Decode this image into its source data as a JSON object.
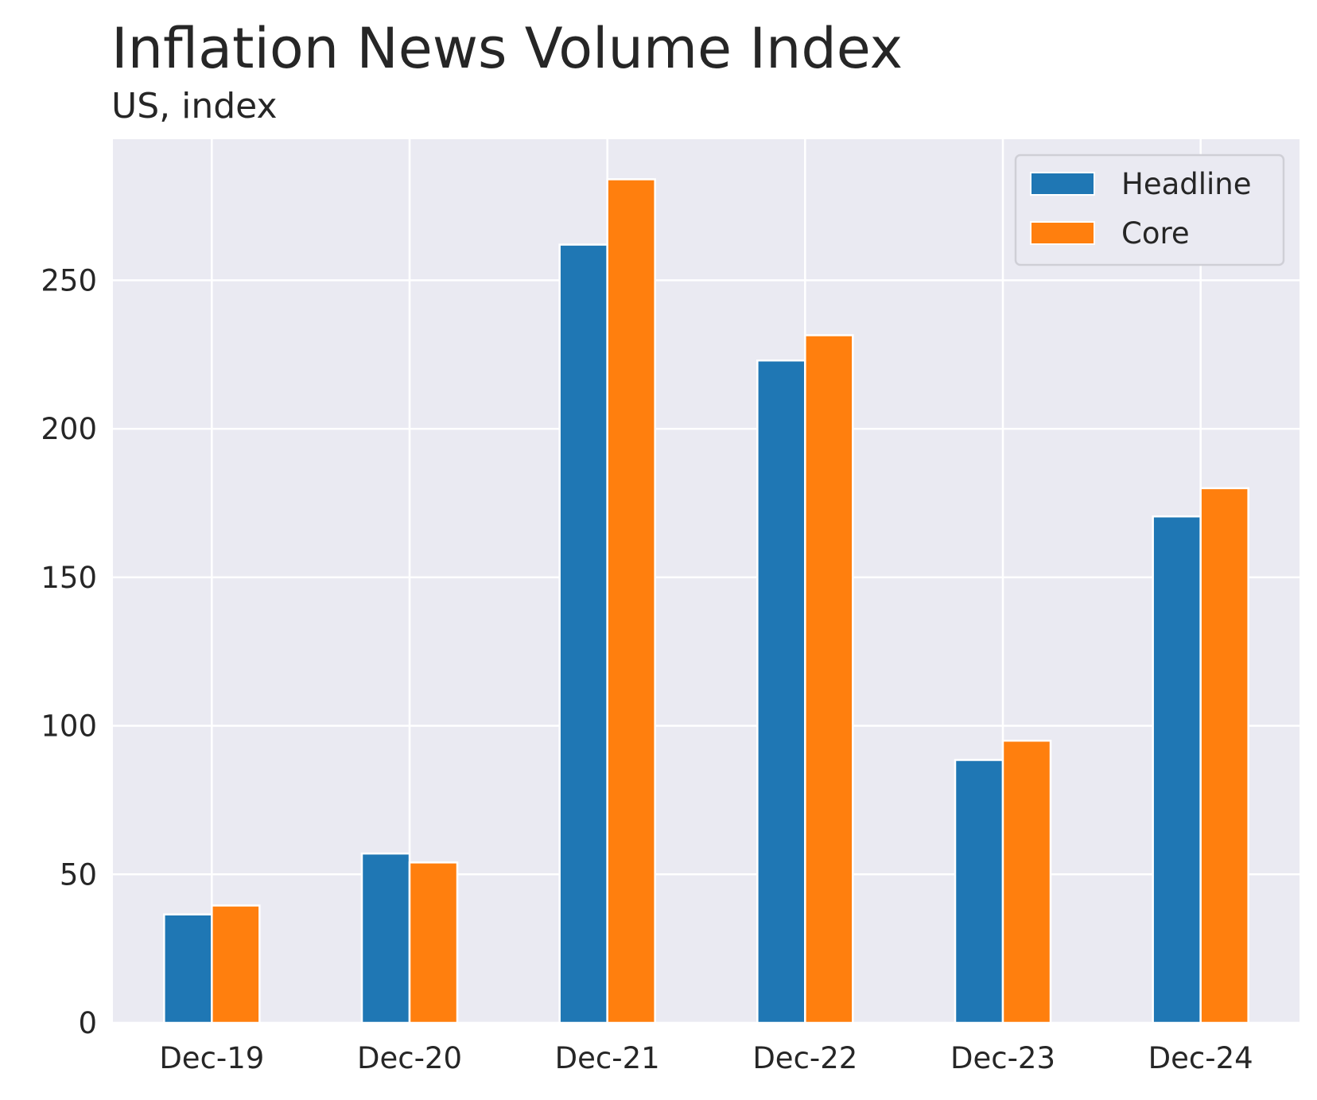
{
  "chart_data": {
    "type": "bar",
    "title": "Inflation News Volume Index",
    "subtitle": "US, index",
    "xlabel": "",
    "ylabel": "",
    "categories": [
      "Dec-19",
      "Dec-20",
      "Dec-21",
      "Dec-22",
      "Dec-23",
      "Dec-24"
    ],
    "series": [
      {
        "name": "Headline",
        "color": "#1f77b4",
        "values": [
          36.5,
          57,
          262,
          223,
          88.5,
          170.5
        ]
      },
      {
        "name": "Core",
        "color": "#ff7f0e",
        "values": [
          39.5,
          54,
          284,
          231.5,
          95,
          180
        ]
      }
    ],
    "ylim": [
      0,
      297.5
    ],
    "yticks": [
      0,
      50,
      100,
      150,
      200,
      250
    ],
    "grid": true,
    "legend_position": "top-right",
    "colors": {
      "plot_background": "#eaeaf2",
      "grid": "#ffffff",
      "text": "#262626"
    }
  }
}
